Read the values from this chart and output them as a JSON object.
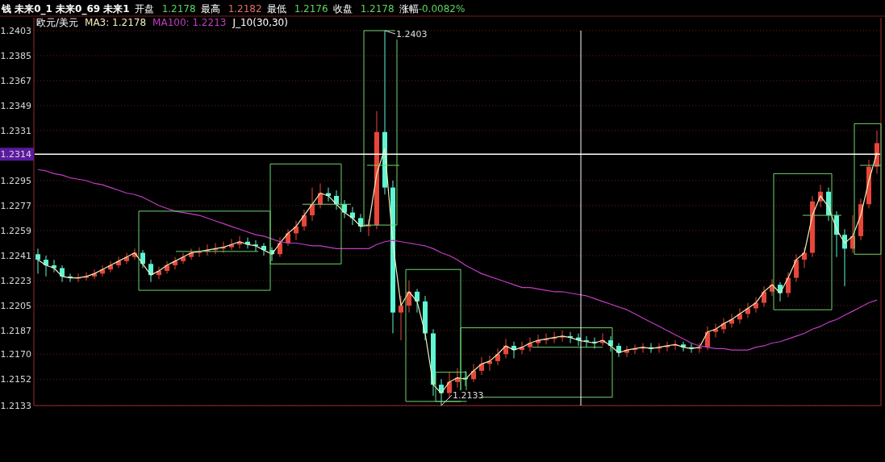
{
  "chart_data": {
    "type": "candlestick",
    "title": "欧元/美元",
    "categories": [
      null,
      null,
      null,
      null,
      null,
      null,
      null,
      null,
      null,
      null,
      null,
      null,
      null,
      null,
      null,
      null,
      null,
      null,
      null,
      null,
      null,
      null,
      null,
      null,
      null,
      null,
      null,
      null,
      null,
      null,
      null,
      null,
      null,
      null,
      null,
      null,
      null,
      null,
      null,
      null,
      null,
      null,
      null,
      null,
      null,
      null,
      null,
      null,
      null,
      null,
      null,
      null,
      null,
      null,
      null,
      null,
      null,
      null,
      null,
      null,
      null,
      null,
      null,
      null,
      null,
      null,
      null,
      null,
      null,
      null,
      null,
      null,
      null,
      null,
      null,
      null,
      null,
      null,
      null,
      null,
      null,
      null,
      null,
      null,
      null,
      null,
      null,
      null,
      null,
      null,
      null,
      null,
      null,
      null,
      null,
      null,
      null,
      null,
      null,
      null,
      null,
      null,
      null,
      null,
      null
    ],
    "ohlc": [
      [
        1.2242,
        1.2246,
        1.2228,
        1.2238
      ],
      [
        1.2238,
        1.2241,
        1.2226,
        1.2234
      ],
      [
        1.2234,
        1.2238,
        1.2229,
        1.2232
      ],
      [
        1.2232,
        1.2234,
        1.2222,
        1.2226
      ],
      [
        1.2226,
        1.2228,
        1.2222,
        1.2225
      ],
      [
        1.2225,
        1.2228,
        1.2222,
        1.2225
      ],
      [
        1.2225,
        1.2229,
        1.2223,
        1.2226
      ],
      [
        1.2226,
        1.2231,
        1.2224,
        1.2228
      ],
      [
        1.2228,
        1.2234,
        1.2226,
        1.2231
      ],
      [
        1.2231,
        1.2237,
        1.2229,
        1.2234
      ],
      [
        1.2234,
        1.224,
        1.2232,
        1.2237
      ],
      [
        1.2237,
        1.2243,
        1.2235,
        1.224
      ],
      [
        1.224,
        1.2246,
        1.2238,
        1.2243
      ],
      [
        1.2243,
        1.2245,
        1.2232,
        1.2235
      ],
      [
        1.2235,
        1.2238,
        1.2222,
        1.2227
      ],
      [
        1.2227,
        1.2233,
        1.2224,
        1.223
      ],
      [
        1.223,
        1.2237,
        1.2228,
        1.2234
      ],
      [
        1.2234,
        1.224,
        1.2231,
        1.2237
      ],
      [
        1.2237,
        1.2243,
        1.2235,
        1.224
      ],
      [
        1.224,
        1.2246,
        1.2238,
        1.2243
      ],
      [
        1.2243,
        1.2247,
        1.224,
        1.2244
      ],
      [
        1.2244,
        1.2249,
        1.2241,
        1.2245
      ],
      [
        1.2245,
        1.225,
        1.2242,
        1.2246
      ],
      [
        1.2246,
        1.2251,
        1.2243,
        1.2247
      ],
      [
        1.2247,
        1.2253,
        1.2245,
        1.2249
      ],
      [
        1.2249,
        1.2255,
        1.2246,
        1.2251
      ],
      [
        1.2251,
        1.2254,
        1.2246,
        1.2249
      ],
      [
        1.2249,
        1.2252,
        1.2244,
        1.2248
      ],
      [
        1.2248,
        1.225,
        1.2241,
        1.2245
      ],
      [
        1.2245,
        1.2247,
        1.2237,
        1.2242
      ],
      [
        1.2242,
        1.2254,
        1.224,
        1.225
      ],
      [
        1.225,
        1.226,
        1.2248,
        1.2257
      ],
      [
        1.2257,
        1.2266,
        1.2252,
        1.2262
      ],
      [
        1.2262,
        1.2274,
        1.2259,
        1.227
      ],
      [
        1.227,
        1.229,
        1.2266,
        1.2278
      ],
      [
        1.2278,
        1.2293,
        1.2275,
        1.2286
      ],
      [
        1.2286,
        1.229,
        1.228,
        1.2284
      ],
      [
        1.2284,
        1.2288,
        1.2274,
        1.2278
      ],
      [
        1.2278,
        1.2281,
        1.2268,
        1.2272
      ],
      [
        1.2272,
        1.2276,
        1.2263,
        1.2268
      ],
      [
        1.2268,
        1.2271,
        1.2258,
        1.2262
      ],
      [
        1.2262,
        1.2267,
        1.2255,
        1.2263
      ],
      [
        1.2263,
        1.2345,
        1.226,
        1.233
      ],
      [
        1.233,
        1.2403,
        1.2285,
        1.229
      ],
      [
        1.229,
        1.2295,
        1.2185,
        1.22
      ],
      [
        1.22,
        1.2212,
        1.218,
        1.2205
      ],
      [
        1.2205,
        1.2223,
        1.22,
        1.2215
      ],
      [
        1.2215,
        1.2217,
        1.22,
        1.2208
      ],
      [
        1.2208,
        1.2212,
        1.218,
        1.2185
      ],
      [
        1.2185,
        1.2188,
        1.214,
        1.2148
      ],
      [
        1.2148,
        1.2152,
        1.2133,
        1.2142
      ],
      [
        1.2142,
        1.2157,
        1.2138,
        1.215
      ],
      [
        1.215,
        1.216,
        1.2146,
        1.2153
      ],
      [
        1.2153,
        1.2158,
        1.2147,
        1.2152
      ],
      [
        1.2152,
        1.2163,
        1.215,
        1.2158
      ],
      [
        1.2158,
        1.2168,
        1.2155,
        1.2163
      ],
      [
        1.2163,
        1.2169,
        1.2158,
        1.2165
      ],
      [
        1.2165,
        1.2174,
        1.2162,
        1.217
      ],
      [
        1.217,
        1.2181,
        1.2167,
        1.2176
      ],
      [
        1.2176,
        1.2179,
        1.2167,
        1.2173
      ],
      [
        1.2173,
        1.2179,
        1.217,
        1.2175
      ],
      [
        1.2175,
        1.2182,
        1.2172,
        1.2178
      ],
      [
        1.2178,
        1.2184,
        1.2175,
        1.218
      ],
      [
        1.218,
        1.2185,
        1.2177,
        1.2181
      ],
      [
        1.2181,
        1.2186,
        1.2178,
        1.2182
      ],
      [
        1.2182,
        1.2187,
        1.2179,
        1.2183
      ],
      [
        1.2183,
        1.2186,
        1.2178,
        1.2182
      ],
      [
        1.2182,
        1.2185,
        1.2176,
        1.218
      ],
      [
        1.218,
        1.2183,
        1.2175,
        1.2179
      ],
      [
        1.2179,
        1.2182,
        1.2174,
        1.2178
      ],
      [
        1.2178,
        1.2185,
        1.2176,
        1.218
      ],
      [
        1.218,
        1.2183,
        1.2172,
        1.2176
      ],
      [
        1.2176,
        1.2178,
        1.2168,
        1.2171
      ],
      [
        1.2171,
        1.2176,
        1.2168,
        1.2173
      ],
      [
        1.2173,
        1.2177,
        1.217,
        1.2174
      ],
      [
        1.2174,
        1.2178,
        1.2171,
        1.2175
      ],
      [
        1.2175,
        1.2178,
        1.2171,
        1.2174
      ],
      [
        1.2174,
        1.2178,
        1.2171,
        1.2175
      ],
      [
        1.2175,
        1.2179,
        1.2172,
        1.2176
      ],
      [
        1.2176,
        1.218,
        1.2173,
        1.2177
      ],
      [
        1.2177,
        1.2179,
        1.2172,
        1.2175
      ],
      [
        1.2175,
        1.2178,
        1.2171,
        1.2174
      ],
      [
        1.2174,
        1.2178,
        1.2171,
        1.2175
      ],
      [
        1.2175,
        1.219,
        1.2173,
        1.2186
      ],
      [
        1.2186,
        1.2192,
        1.2182,
        1.2188
      ],
      [
        1.2188,
        1.2196,
        1.2185,
        1.2192
      ],
      [
        1.2192,
        1.2199,
        1.2189,
        1.2195
      ],
      [
        1.2195,
        1.2203,
        1.2192,
        1.2199
      ],
      [
        1.2199,
        1.2207,
        1.2196,
        1.2203
      ],
      [
        1.2203,
        1.2211,
        1.22,
        1.2207
      ],
      [
        1.2207,
        1.2219,
        1.2204,
        1.2215
      ],
      [
        1.2215,
        1.2224,
        1.2212,
        1.222
      ],
      [
        1.222,
        1.2222,
        1.2208,
        1.2214
      ],
      [
        1.2214,
        1.2229,
        1.2211,
        1.2225
      ],
      [
        1.2225,
        1.2242,
        1.2222,
        1.2238
      ],
      [
        1.2238,
        1.2247,
        1.2232,
        1.2243
      ],
      [
        1.2243,
        1.2284,
        1.224,
        1.228
      ],
      [
        1.228,
        1.2292,
        1.2276,
        1.2287
      ],
      [
        1.2287,
        1.229,
        1.2266,
        1.227
      ],
      [
        1.227,
        1.2273,
        1.224,
        1.2256
      ],
      [
        1.2256,
        1.226,
        1.2219,
        1.2246
      ],
      [
        1.2246,
        1.227,
        1.2243,
        1.2255
      ],
      [
        1.2255,
        1.2282,
        1.2252,
        1.2278
      ],
      [
        1.2278,
        1.231,
        1.2275,
        1.2305
      ],
      [
        1.2305,
        1.2331,
        1.23,
        1.2322
      ]
    ],
    "colors": [
      "#5ff5d5",
      "#5ff5d5",
      "#5ff5d5",
      "#5ff5d5",
      "#5ff5d5",
      "#e8463a",
      "#e8463a",
      "#e8463a",
      "#e8463a",
      "#e8463a",
      "#e8463a",
      "#e8463a",
      "#e8463a",
      "#5ff5d5",
      "#5ff5d5",
      "#e8463a",
      "#e8463a",
      "#e8463a",
      "#e8463a",
      "#e8463a",
      "#e8463a",
      "#e8463a",
      "#e8463a",
      "#e8463a",
      "#e8463a",
      "#e8463a",
      "#5ff5d5",
      "#5ff5d5",
      "#5ff5d5",
      "#5ff5d5",
      "#e8463a",
      "#e8463a",
      "#e8463a",
      "#e8463a",
      "#e8463a",
      "#e8463a",
      "#5ff5d5",
      "#5ff5d5",
      "#5ff5d5",
      "#5ff5d5",
      "#5ff5d5",
      "#e8463a",
      "#e8463a",
      "#5ff5d5",
      "#5ff5d5",
      "#e8463a",
      "#e8463a",
      "#5ff5d5",
      "#5ff5d5",
      "#5ff5d5",
      "#5ff5d5",
      "#e8463a",
      "#e8463a",
      "#5ff5d5",
      "#e8463a",
      "#e8463a",
      "#e8463a",
      "#e8463a",
      "#e8463a",
      "#5ff5d5",
      "#e8463a",
      "#e8463a",
      "#e8463a",
      "#e8463a",
      "#e8463a",
      "#e8463a",
      "#5ff5d5",
      "#5ff5d5",
      "#5ff5d5",
      "#5ff5d5",
      "#e8463a",
      "#5ff5d5",
      "#5ff5d5",
      "#e8463a",
      "#e8463a",
      "#e8463a",
      "#5ff5d5",
      "#e8463a",
      "#e8463a",
      "#e8463a",
      "#5ff5d5",
      "#5ff5d5",
      "#e8463a",
      "#e8463a",
      "#e8463a",
      "#e8463a",
      "#e8463a",
      "#e8463a",
      "#e8463a",
      "#e8463a",
      "#e8463a",
      "#e8463a",
      "#5ff5d5",
      "#e8463a",
      "#e8463a",
      "#e8463a",
      "#e8463a",
      "#e8463a",
      "#5ff5d5",
      "#5ff5d5",
      "#5ff5d5",
      "#e8463a",
      "#e8463a",
      "#e8463a",
      "#e8463a"
    ],
    "series": [
      {
        "type": "line",
        "name": "MA3: 1.2178",
        "color": "#f2eebc",
        "values": [
          1.2238,
          1.2234,
          1.2232,
          1.2226,
          1.2225,
          1.2225,
          1.2226,
          1.2228,
          1.2231,
          1.2234,
          1.2237,
          1.224,
          1.2243,
          1.2235,
          1.2227,
          1.223,
          1.2234,
          1.2237,
          1.224,
          1.2243,
          1.2244,
          1.2245,
          1.2246,
          1.2247,
          1.2249,
          1.2251,
          1.2249,
          1.2248,
          1.2245,
          1.2242,
          1.225,
          1.2257,
          1.2262,
          1.227,
          1.2278,
          1.2286,
          1.2284,
          1.2278,
          1.2272,
          1.2268,
          1.2262,
          1.2263,
          1.23,
          1.2318,
          1.225,
          1.2205,
          1.2215,
          1.2208,
          1.2185,
          1.2148,
          1.2142,
          1.215,
          1.2153,
          1.2152,
          1.2158,
          1.2163,
          1.2165,
          1.217,
          1.2176,
          1.2173,
          1.2175,
          1.2178,
          1.218,
          1.2181,
          1.2182,
          1.2183,
          1.2182,
          1.218,
          1.2179,
          1.2178,
          1.218,
          1.2176,
          1.2171,
          1.2173,
          1.2174,
          1.2175,
          1.2174,
          1.2175,
          1.2176,
          1.2177,
          1.2175,
          1.2174,
          1.2175,
          1.2186,
          1.2188,
          1.2192,
          1.2195,
          1.2199,
          1.2203,
          1.2207,
          1.2215,
          1.222,
          1.2214,
          1.2225,
          1.2238,
          1.2243,
          1.227,
          1.2284,
          1.2276,
          1.226,
          1.225,
          1.2255,
          1.227,
          1.2295,
          1.2315
        ]
      },
      {
        "type": "line",
        "name": "MA100: 1.2213",
        "color": "#c43cc4",
        "values": [
          1.2303,
          1.2302,
          1.23,
          1.2299,
          1.2297,
          1.2296,
          1.2295,
          1.2293,
          1.2292,
          1.229,
          1.2288,
          1.2286,
          1.2285,
          1.2283,
          1.228,
          1.2277,
          1.2275,
          1.2273,
          1.2272,
          1.2271,
          1.227,
          1.2268,
          1.2266,
          1.2264,
          1.2262,
          1.226,
          1.2258,
          1.2256,
          1.2255,
          1.2253,
          1.2251,
          1.225,
          1.225,
          1.2249,
          1.2248,
          1.2248,
          1.2247,
          1.2246,
          1.2246,
          1.2246,
          1.2246,
          1.2246,
          1.2249,
          1.2251,
          1.2252,
          1.2251,
          1.225,
          1.2249,
          1.2248,
          1.2246,
          1.2243,
          1.2241,
          1.2238,
          1.2234,
          1.2231,
          1.2228,
          1.2226,
          1.2224,
          1.2222,
          1.222,
          1.2218,
          1.2218,
          1.2217,
          1.2216,
          1.2215,
          1.2215,
          1.2214,
          1.2213,
          1.2212,
          1.221,
          1.2208,
          1.2206,
          1.2204,
          1.2202,
          1.2199,
          1.2196,
          1.2193,
          1.219,
          1.2187,
          1.2184,
          1.2181,
          1.2178,
          1.2176,
          1.2175,
          1.2174,
          1.2174,
          1.2173,
          1.2173,
          1.2173,
          1.2175,
          1.2176,
          1.2178,
          1.2179,
          1.2181,
          1.2183,
          1.2185,
          1.2188,
          1.219,
          1.2193,
          1.2195,
          1.2198,
          1.2201,
          1.2204,
          1.2207,
          1.2209
        ]
      }
    ],
    "ylim": [
      1.2133,
      1.2403
    ],
    "yticks": [
      1.2133,
      1.2152,
      {
        "value": 1.217,
        "label": "1.2170"
      },
      1.2187,
      1.2205,
      1.2223,
      1.2241,
      1.2259,
      1.2277,
      1.2295,
      1.2314,
      1.2331,
      1.2349,
      1.2367,
      1.2385,
      1.2403
    ],
    "grid": "y",
    "tick_labels": "y",
    "legend": "top left",
    "ref_lines": [
      {
        "axis": "y",
        "value": 1.2314,
        "color": "#ffffff"
      }
    ],
    "annotations": [
      "钱 未来0_1 未来0_69 未来1",
      "开盘",
      "1.2178",
      "最高",
      "1.2182",
      "最低",
      "1.2176",
      "收盘",
      "1.2178",
      "涨幅",
      "-0.0082%",
      "J_10(30,30)",
      "1.2403",
      "1.2133"
    ]
  }
}
